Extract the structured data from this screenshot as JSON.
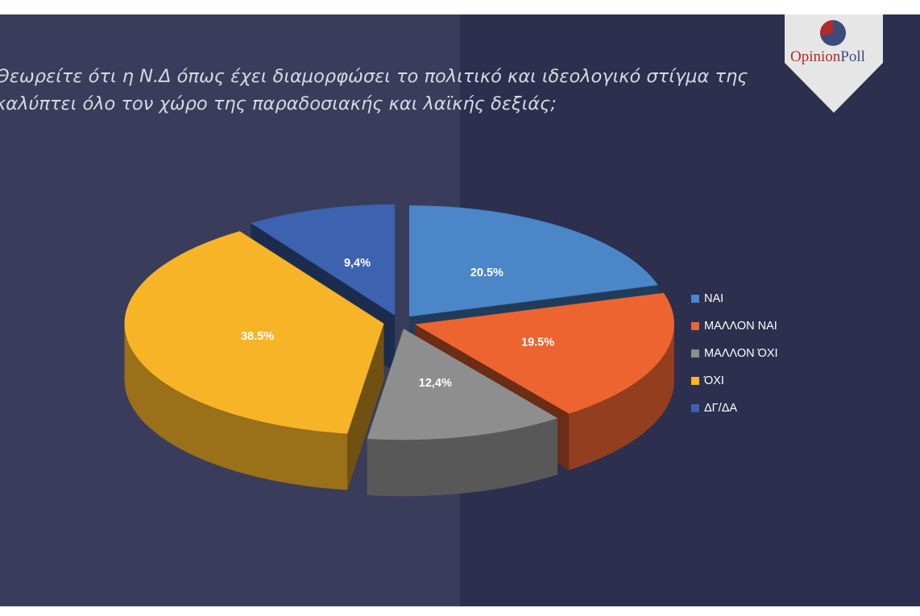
{
  "logo": {
    "brand_part1": "Opinion",
    "brand_part2": "Poll"
  },
  "chart_data": {
    "type": "pie",
    "title": "Θεωρείτε ότι η Ν.Δ όπως έχει διαμορφώσει το πολιτικό και ιδεολογικό στίγμα της καλύπτει όλο τον χώρο της παραδοσιακής και λαϊκής δεξιάς;",
    "legend_position": "right",
    "slices": [
      {
        "name": "ΝΑΙ",
        "value": 20.5,
        "label": "20.5%",
        "color": "#4a86c8"
      },
      {
        "name": "ΜΑΛΛΟΝ ΝΑΙ",
        "value": 19.5,
        "label": "19.5%",
        "color": "#ed6430"
      },
      {
        "name": "ΜΑΛΛΟΝ ΌΧΙ",
        "value": 12.4,
        "label": "12,4%",
        "color": "#8e8e8e"
      },
      {
        "name": "ΌΧΙ",
        "value": 38.5,
        "label": "38.5%",
        "color": "#f8b427"
      },
      {
        "name": "ΔΓ/ΔΑ",
        "value": 9.4,
        "label": "9,4%",
        "color": "#3c62b0"
      }
    ]
  }
}
